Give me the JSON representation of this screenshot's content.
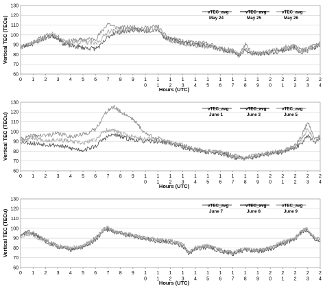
{
  "chart_data": [
    {
      "type": "line",
      "ylabel": "Vertical TEC (TECu)",
      "xlabel": "Hours  (UTC)",
      "ylim": [
        60,
        130
      ],
      "yticks": [
        60,
        70,
        80,
        90,
        100,
        110,
        120,
        130
      ],
      "xlim": [
        0,
        24
      ],
      "xtick_labels": [
        [
          "0"
        ],
        [
          "1"
        ],
        [
          "2"
        ],
        [
          "3"
        ],
        [
          "4"
        ],
        [
          "5"
        ],
        [
          "6"
        ],
        [
          "7"
        ],
        [
          "8"
        ],
        [
          "9"
        ],
        [
          "1",
          "0"
        ],
        [
          "1",
          "1"
        ],
        [
          "1",
          "2"
        ],
        [
          "1",
          "3"
        ],
        [
          "1",
          "4"
        ],
        [
          "1",
          "5"
        ],
        [
          "1",
          "6"
        ],
        [
          "1",
          "7"
        ],
        [
          "1",
          "8"
        ],
        [
          "1",
          "9"
        ],
        [
          "2",
          "0"
        ],
        [
          "2",
          "1"
        ],
        [
          "2",
          "2"
        ],
        [
          "2",
          "3"
        ],
        [
          "2",
          "4"
        ]
      ],
      "grid": true,
      "legend": "top-right",
      "series": [
        {
          "name": "vTEC_avg",
          "date": "May 24",
          "color": "#8c8c8c",
          "width": 0.9,
          "jitter": 2.4,
          "seed": 11,
          "x": [
            0,
            1,
            2,
            2.5,
            3,
            3.5,
            4,
            5,
            6,
            6.5,
            7,
            7.5,
            8,
            9,
            10,
            11,
            11.5,
            12,
            13,
            14,
            15,
            16,
            17,
            17.5,
            18,
            18.5,
            19,
            20,
            21,
            22,
            22.5,
            23,
            23.5,
            24
          ],
          "values": [
            87,
            93,
            99,
            100,
            98,
            92,
            94,
            95,
            96,
            103,
            112,
            108,
            107,
            108,
            107,
            109,
            100,
            97,
            93,
            92,
            91,
            86,
            84,
            79,
            90,
            82,
            81,
            83,
            86,
            91,
            84,
            86,
            90,
            91
          ]
        },
        {
          "name": "vTEC_avg",
          "date": "May 25",
          "color": "#5a5a5a",
          "width": 0.9,
          "jitter": 2.4,
          "seed": 23,
          "x": [
            0,
            1,
            2,
            2.5,
            3,
            3.5,
            4,
            5,
            6,
            6.5,
            7,
            7.5,
            8,
            9,
            10,
            11,
            11.5,
            12,
            13,
            14,
            15,
            16,
            17,
            17.5,
            18,
            18.5,
            19,
            20,
            21,
            22,
            22.5,
            23,
            23.5,
            24
          ],
          "values": [
            88,
            91,
            97,
            99,
            97,
            90,
            89,
            87,
            86,
            90,
            98,
            102,
            103,
            105,
            104,
            106,
            98,
            95,
            92,
            90,
            89,
            85,
            83,
            79,
            84,
            80,
            81,
            82,
            84,
            87,
            82,
            84,
            87,
            88
          ]
        },
        {
          "name": "vTEC_avg",
          "date": "May 26",
          "color": "#a8a8a8",
          "width": 0.9,
          "jitter": 2.4,
          "seed": 37,
          "x": [
            0,
            1,
            2,
            2.5,
            3,
            3.5,
            4,
            5,
            6,
            6.5,
            7,
            7.5,
            8,
            9,
            10,
            11,
            11.5,
            12,
            13,
            14,
            15,
            16,
            17,
            17.5,
            18,
            18.5,
            19,
            20,
            21,
            22,
            22.5,
            23,
            23.5,
            24
          ],
          "values": [
            89,
            92,
            97,
            101,
            99,
            93,
            92,
            93,
            91,
            96,
            104,
            104,
            104,
            106,
            104,
            107,
            99,
            94,
            91,
            89,
            88,
            86,
            84,
            80,
            86,
            81,
            81,
            83,
            85,
            88,
            83,
            85,
            89,
            90
          ]
        }
      ]
    },
    {
      "type": "line",
      "ylabel": "Vertical TEC (TECu)",
      "xlabel": "Hours  (UTC)",
      "ylim": [
        60,
        130
      ],
      "yticks": [
        60,
        70,
        80,
        90,
        100,
        110,
        120,
        130
      ],
      "xlim": [
        0,
        24
      ],
      "xtick_labels": [
        [
          "0"
        ],
        [
          "1"
        ],
        [
          "2"
        ],
        [
          "3"
        ],
        [
          "4"
        ],
        [
          "5"
        ],
        [
          "6"
        ],
        [
          "7"
        ],
        [
          "8"
        ],
        [
          "9"
        ],
        [
          "1",
          "0"
        ],
        [
          "1",
          "1"
        ],
        [
          "1",
          "2"
        ],
        [
          "1",
          "3"
        ],
        [
          "1",
          "4"
        ],
        [
          "1",
          "5"
        ],
        [
          "1",
          "6"
        ],
        [
          "1",
          "7"
        ],
        [
          "1",
          "8"
        ],
        [
          "1",
          "9"
        ],
        [
          "2",
          "0"
        ],
        [
          "2",
          "1"
        ],
        [
          "2",
          "2"
        ],
        [
          "2",
          "3"
        ],
        [
          "2",
          "4"
        ]
      ],
      "grid": true,
      "legend": "top-right",
      "series": [
        {
          "name": "vTEC_avg",
          "date": "June 1",
          "color": "#8c8c8c",
          "width": 0.9,
          "jitter": 2.2,
          "seed": 41,
          "x": [
            0,
            1,
            2,
            3,
            4,
            5,
            6,
            6.5,
            7,
            7.5,
            8,
            8.5,
            9,
            10,
            11,
            12,
            13,
            14,
            15,
            16,
            17,
            18,
            19,
            20,
            21,
            22,
            22.5,
            23,
            23.5,
            24
          ],
          "values": [
            92,
            96,
            96,
            98,
            95,
            97,
            102,
            113,
            122,
            125,
            120,
            117,
            113,
            98,
            93,
            89,
            86,
            82,
            80,
            79,
            76,
            74,
            76,
            79,
            80,
            86,
            95,
            110,
            93,
            95
          ]
        },
        {
          "name": "vTEC_avg",
          "date": "June 3",
          "color": "#5a5a5a",
          "width": 0.9,
          "jitter": 2.2,
          "seed": 53,
          "x": [
            0,
            1,
            2,
            3,
            4,
            5,
            6,
            6.5,
            7,
            7.5,
            8,
            8.5,
            9,
            10,
            11,
            12,
            13,
            14,
            15,
            16,
            17,
            18,
            19,
            20,
            21,
            22,
            22.5,
            23,
            23.5,
            24
          ],
          "values": [
            90,
            88,
            87,
            86,
            83,
            81,
            85,
            91,
            95,
            97,
            95,
            93,
            92,
            90,
            90,
            88,
            84,
            81,
            79,
            78,
            74,
            72,
            75,
            77,
            79,
            83,
            88,
            97,
            89,
            92
          ]
        },
        {
          "name": "vTEC_avg",
          "date": "June 5",
          "color": "#a8a8a8",
          "width": 0.9,
          "jitter": 2.2,
          "seed": 67,
          "x": [
            0,
            1,
            2,
            3,
            4,
            5,
            6,
            6.5,
            7,
            7.5,
            8,
            8.5,
            9,
            10,
            11,
            12,
            13,
            14,
            15,
            16,
            17,
            18,
            19,
            20,
            21,
            22,
            22.5,
            23,
            23.5,
            24
          ],
          "values": [
            91,
            94,
            91,
            92,
            90,
            88,
            92,
            98,
            102,
            101,
            98,
            96,
            95,
            93,
            92,
            89,
            85,
            82,
            80,
            79,
            75,
            73,
            76,
            78,
            80,
            85,
            92,
            104,
            91,
            93
          ]
        }
      ]
    },
    {
      "type": "line",
      "ylabel": "Vertical TEC (TECu)",
      "xlabel": "Hours  (UTC)",
      "ylim": [
        60,
        130
      ],
      "yticks": [
        60,
        70,
        80,
        90,
        100,
        110,
        120,
        130
      ],
      "xlim": [
        0,
        24
      ],
      "xtick_labels": [
        [
          "0"
        ],
        [
          "1"
        ],
        [
          "2"
        ],
        [
          "3"
        ],
        [
          "4"
        ],
        [
          "5"
        ],
        [
          "6"
        ],
        [
          "7"
        ],
        [
          "8"
        ],
        [
          "9"
        ],
        [
          "1",
          "0"
        ],
        [
          "1",
          "1"
        ],
        [
          "1",
          "2"
        ],
        [
          "1",
          "3"
        ],
        [
          "1",
          "4"
        ],
        [
          "1",
          "5"
        ],
        [
          "1",
          "6"
        ],
        [
          "1",
          "7"
        ],
        [
          "1",
          "8"
        ],
        [
          "1",
          "9"
        ],
        [
          "2",
          "0"
        ],
        [
          "2",
          "1"
        ],
        [
          "2",
          "2"
        ],
        [
          "2",
          "3"
        ],
        [
          "2",
          "4"
        ]
      ],
      "grid": true,
      "legend": "top-right",
      "series": [
        {
          "name": "vTEC_avg",
          "date": "June 7",
          "color": "#8c8c8c",
          "width": 0.9,
          "jitter": 2.2,
          "seed": 71,
          "x": [
            0,
            0.5,
            1,
            2,
            3,
            4,
            5,
            6,
            6.5,
            7,
            8,
            9,
            10,
            11,
            12,
            13,
            13.5,
            14,
            15,
            16,
            17,
            18,
            19,
            20,
            21,
            22,
            22.5,
            23,
            23.5,
            24
          ],
          "values": [
            93,
            95,
            94,
            88,
            82,
            79,
            82,
            90,
            98,
            100,
            95,
            93,
            90,
            88,
            87,
            84,
            76,
            80,
            82,
            78,
            75,
            79,
            77,
            80,
            85,
            90,
            97,
            99,
            90,
            88
          ]
        },
        {
          "name": "vTEC_avg",
          "date": "June 8",
          "color": "#5a5a5a",
          "width": 0.9,
          "jitter": 2.2,
          "seed": 83,
          "x": [
            0,
            0.5,
            1,
            2,
            3,
            4,
            5,
            6,
            6.5,
            7,
            8,
            9,
            10,
            11,
            12,
            13,
            13.5,
            14,
            15,
            16,
            17,
            18,
            19,
            20,
            21,
            22,
            22.5,
            23,
            23.5,
            24
          ],
          "values": [
            91,
            97,
            95,
            87,
            81,
            78,
            80,
            88,
            95,
            99,
            94,
            92,
            89,
            87,
            86,
            82,
            74,
            79,
            81,
            77,
            74,
            78,
            76,
            79,
            84,
            89,
            96,
            98,
            89,
            87
          ]
        },
        {
          "name": "vTEC_avg",
          "date": "June 9",
          "color": "#a8a8a8",
          "width": 0.9,
          "jitter": 2.2,
          "seed": 97,
          "x": [
            0,
            0.5,
            1,
            2,
            3,
            4,
            5,
            6,
            6.5,
            7,
            8,
            9,
            10,
            11,
            12,
            13,
            13.5,
            14,
            15,
            16,
            17,
            18,
            19,
            20,
            21,
            22,
            22.5,
            23,
            23.5,
            24
          ],
          "values": [
            92,
            94,
            93,
            87,
            82,
            80,
            81,
            89,
            96,
            101,
            94,
            93,
            90,
            88,
            87,
            83,
            75,
            80,
            82,
            78,
            75,
            79,
            77,
            80,
            86,
            90,
            97,
            100,
            91,
            89
          ]
        }
      ]
    }
  ]
}
